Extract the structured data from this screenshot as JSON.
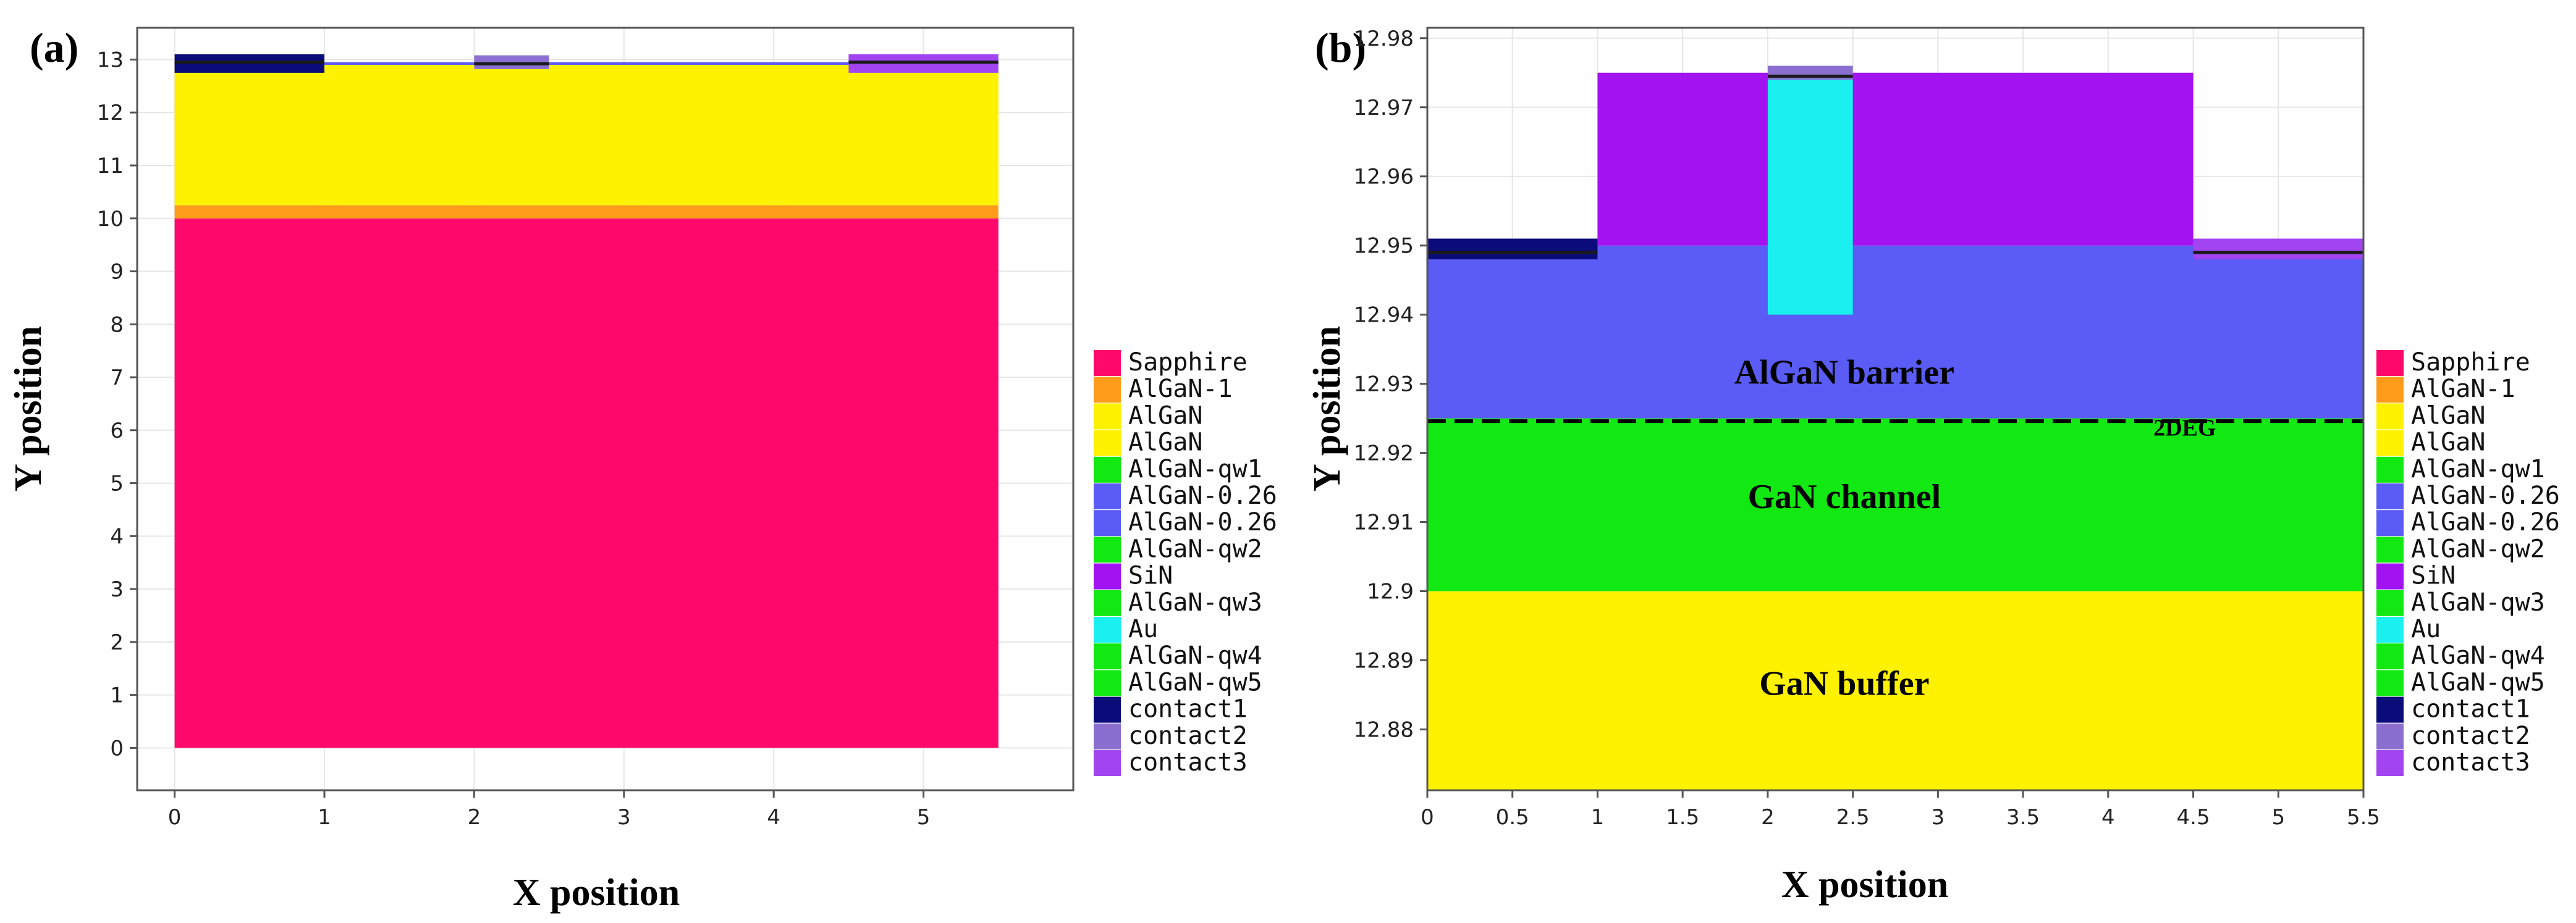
{
  "chart_data": [
    {
      "panel_label": "(a)",
      "type": "heatmap",
      "xlabel": "X position",
      "ylabel": "Y position",
      "xlim": [
        -0.25,
        6.0
      ],
      "ylim": [
        -0.8,
        13.6
      ],
      "xticks": [
        0,
        1,
        2,
        3,
        4,
        5
      ],
      "xtick_labels": [
        "0",
        "1",
        "2",
        "3",
        "4",
        "5"
      ],
      "yticks": [
        0,
        1,
        2,
        3,
        4,
        5,
        6,
        7,
        8,
        9,
        10,
        11,
        12,
        13
      ],
      "ytick_labels": [
        "0",
        "1",
        "2",
        "3",
        "4",
        "5",
        "6",
        "7",
        "8",
        "9",
        "10",
        "11",
        "12",
        "13"
      ],
      "grid": true,
      "legend_position": "right",
      "regions": [
        {
          "material": "Sapphire",
          "x": [
            0,
            5.5
          ],
          "y": [
            0,
            10.0
          ]
        },
        {
          "material": "AlGaN-1",
          "x": [
            0,
            5.5
          ],
          "y": [
            10.0,
            10.25
          ]
        },
        {
          "material": "AlGaN",
          "x": [
            0,
            5.5
          ],
          "y": [
            10.25,
            12.9
          ]
        },
        {
          "material": "AlGaN-0.26",
          "x": [
            0,
            5.5
          ],
          "y": [
            12.9,
            12.95
          ]
        },
        {
          "material": "contact1",
          "x": [
            0,
            1.0
          ],
          "y": [
            12.75,
            13.1
          ]
        },
        {
          "material": "contact2",
          "x": [
            2.0,
            2.5
          ],
          "y": [
            12.82,
            13.08
          ]
        },
        {
          "material": "contact3",
          "x": [
            4.5,
            5.5
          ],
          "y": [
            12.75,
            13.1
          ]
        }
      ],
      "regions_edges": [
        {
          "x": [
            0,
            1.0
          ],
          "y": [
            12.95,
            12.95
          ]
        },
        {
          "x": [
            2.0,
            2.5
          ],
          "y": [
            12.92,
            12.92
          ]
        },
        {
          "x": [
            4.5,
            5.5
          ],
          "y": [
            12.95,
            12.95
          ]
        }
      ],
      "annotations": []
    },
    {
      "panel_label": "(b)",
      "type": "heatmap",
      "xlabel": "X position",
      "ylabel": "Y position",
      "xlim": [
        0,
        5.5
      ],
      "ylim": [
        12.8712,
        12.9815
      ],
      "xticks": [
        0,
        0.5,
        1,
        1.5,
        2,
        2.5,
        3,
        3.5,
        4,
        4.5,
        5,
        5.5
      ],
      "xtick_labels": [
        "0",
        "0.5",
        "1",
        "1.5",
        "2",
        "2.5",
        "3",
        "3.5",
        "4",
        "4.5",
        "5",
        "5.5"
      ],
      "yticks": [
        12.88,
        12.89,
        12.9,
        12.91,
        12.92,
        12.93,
        12.94,
        12.95,
        12.96,
        12.97,
        12.98
      ],
      "ytick_labels": [
        "12.88",
        "12.89",
        "12.9",
        "12.91",
        "12.92",
        "12.93",
        "12.94",
        "12.95",
        "12.96",
        "12.97",
        "12.98"
      ],
      "grid": true,
      "legend_position": "right",
      "regions": [
        {
          "material": "AlGaN",
          "x": [
            0,
            5.5
          ],
          "y": [
            12.8712,
            12.9
          ]
        },
        {
          "material": "AlGaN-qw1",
          "x": [
            0,
            5.5
          ],
          "y": [
            12.9,
            12.925
          ]
        },
        {
          "material": "AlGaN-0.26",
          "x": [
            0,
            5.5
          ],
          "y": [
            12.925,
            12.95
          ]
        },
        {
          "material": "SiN",
          "x": [
            1.0,
            4.5
          ],
          "y": [
            12.95,
            12.975
          ]
        },
        {
          "material": "Au",
          "x": [
            2.0,
            2.5
          ],
          "y": [
            12.94,
            12.974
          ]
        },
        {
          "material": "contact2",
          "x": [
            2.0,
            2.5
          ],
          "y": [
            12.974,
            12.976
          ]
        },
        {
          "material": "contact1",
          "x": [
            0,
            1.0
          ],
          "y": [
            12.948,
            12.951
          ]
        },
        {
          "material": "contact3",
          "x": [
            4.5,
            5.5
          ],
          "y": [
            12.948,
            12.951
          ]
        }
      ],
      "regions_edges": [
        {
          "x": [
            0,
            1.0
          ],
          "y": [
            12.949,
            12.949
          ]
        },
        {
          "x": [
            2.0,
            2.5
          ],
          "y": [
            12.9745,
            12.9745
          ]
        },
        {
          "x": [
            4.5,
            5.5
          ],
          "y": [
            12.949,
            12.949
          ]
        }
      ],
      "twodeg_y": 12.9246,
      "annotations": [
        {
          "text": "AlGaN barrier",
          "x": 2.45,
          "y": 12.93,
          "size": "large"
        },
        {
          "text": "GaN channel",
          "x": 2.45,
          "y": 12.912,
          "size": "large"
        },
        {
          "text": "GaN buffer",
          "x": 2.45,
          "y": 12.885,
          "size": "large"
        },
        {
          "text": "2DEG",
          "x": 4.45,
          "y": 12.9225,
          "size": "small"
        }
      ]
    }
  ],
  "legend": [
    {
      "name": "Sapphire",
      "color": "#ff0a6c"
    },
    {
      "name": "AlGaN-1",
      "color": "#ff9b1a"
    },
    {
      "name": "AlGaN",
      "color": "#fff200"
    },
    {
      "name": "AlGaN",
      "color": "#fff200"
    },
    {
      "name": "AlGaN-qw1",
      "color": "#12e812"
    },
    {
      "name": "AlGaN-0.26",
      "color": "#5a5cf5"
    },
    {
      "name": "AlGaN-0.26",
      "color": "#5a5cf5"
    },
    {
      "name": "AlGaN-qw2",
      "color": "#12e812"
    },
    {
      "name": "SiN",
      "color": "#a313f2"
    },
    {
      "name": "AlGaN-qw3",
      "color": "#12e812"
    },
    {
      "name": "Au",
      "color": "#1af0f0"
    },
    {
      "name": "AlGaN-qw4",
      "color": "#12e812"
    },
    {
      "name": "AlGaN-qw5",
      "color": "#12e812"
    },
    {
      "name": "contact1",
      "color": "#0b0b7a"
    },
    {
      "name": "contact2",
      "color": "#8a6fd0"
    },
    {
      "name": "contact3",
      "color": "#a245f0"
    }
  ],
  "colors": {
    "Sapphire": "#ff0a6c",
    "AlGaN-1": "#ff9b1a",
    "AlGaN": "#fff200",
    "AlGaN-qw1": "#12e812",
    "AlGaN-0.26": "#5a5cf5",
    "SiN": "#a313f2",
    "Au": "#1af0f0",
    "contact1": "#0b0b7a",
    "contact2": "#8a6fd0",
    "contact3": "#a245f0",
    "edge": "#1a1a1a"
  }
}
